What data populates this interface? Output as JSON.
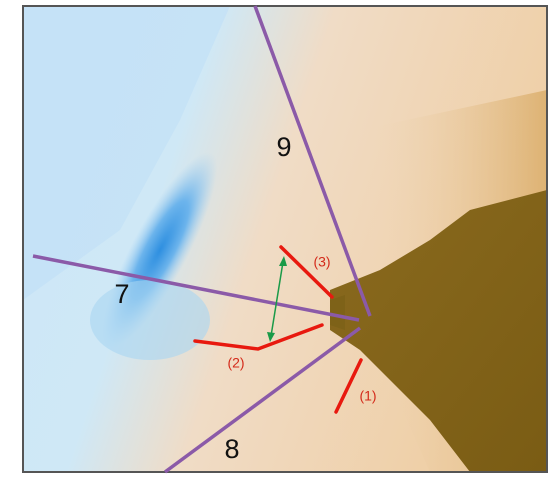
{
  "transects": [
    {
      "label": "9"
    },
    {
      "label": "7"
    },
    {
      "label": "8"
    }
  ],
  "markers": [
    {
      "label": "(1)"
    },
    {
      "label": "(2)"
    },
    {
      "label": "(3)"
    }
  ]
}
